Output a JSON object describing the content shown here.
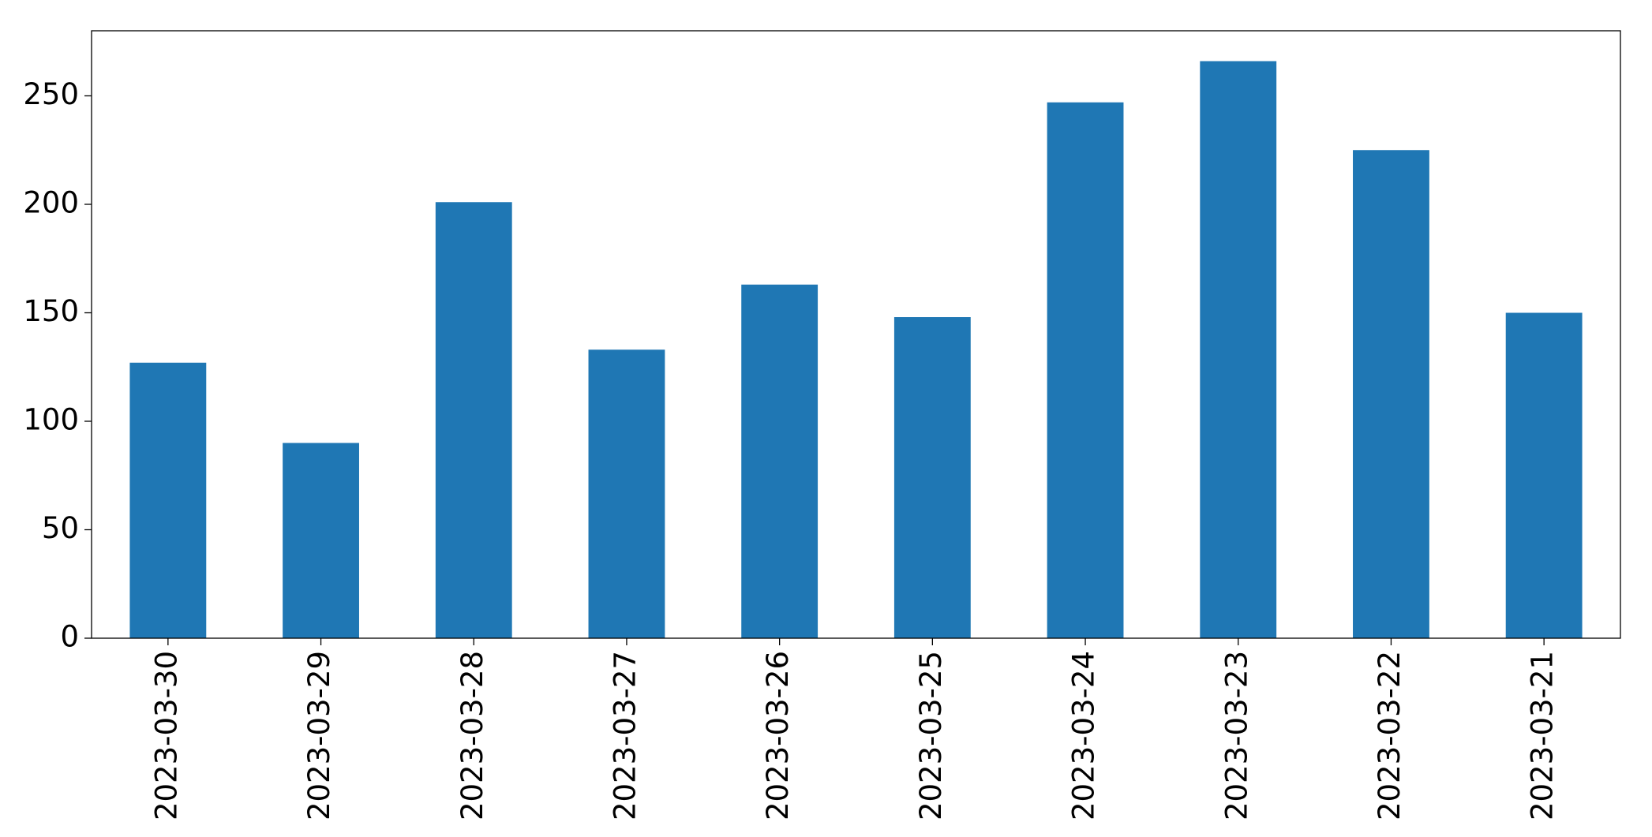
{
  "chart_data": {
    "type": "bar",
    "categories": [
      "2023-03-30",
      "2023-03-29",
      "2023-03-28",
      "2023-03-27",
      "2023-03-26",
      "2023-03-25",
      "2023-03-24",
      "2023-03-23",
      "2023-03-22",
      "2023-03-21"
    ],
    "values": [
      127,
      90,
      201,
      133,
      163,
      148,
      247,
      266,
      225,
      150
    ],
    "color": "#1f77b4",
    "ylim": [
      0,
      280
    ],
    "yticks": [
      0,
      50,
      100,
      150,
      200,
      250
    ],
    "grid": false
  }
}
